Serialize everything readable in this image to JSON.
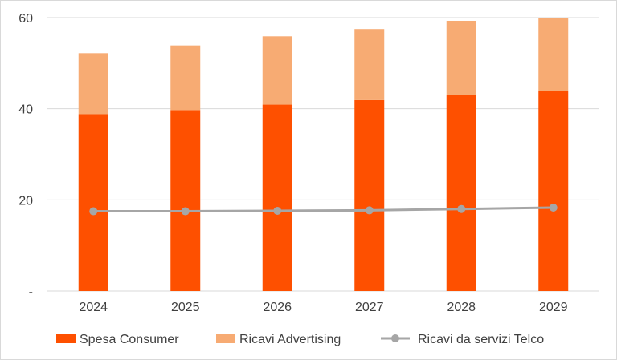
{
  "chart_data": {
    "type": "bar",
    "categories": [
      "2024",
      "2025",
      "2026",
      "2027",
      "2028",
      "2029"
    ],
    "series": [
      {
        "name": "Spesa Consumer",
        "kind": "stacked-bar",
        "color": "#fe5000",
        "values": [
          38.8,
          39.7,
          40.9,
          41.9,
          43.0,
          43.9
        ]
      },
      {
        "name": "Ricavi Advertising",
        "kind": "stacked-bar",
        "color": "#f7ab73",
        "values": [
          13.4,
          14.2,
          15.0,
          15.6,
          16.3,
          16.1
        ]
      },
      {
        "name": "Ricavi da servizi Telco",
        "kind": "line",
        "color": "#a6a6a6",
        "values": [
          17.5,
          17.5,
          17.6,
          17.7,
          18.0,
          18.3
        ]
      }
    ],
    "y_ticks": [
      "-",
      "20",
      "40",
      "60"
    ],
    "y_tick_values": [
      0,
      20,
      40,
      60
    ],
    "ylim": [
      0,
      60
    ],
    "grid": true,
    "legend_position": "bottom"
  }
}
